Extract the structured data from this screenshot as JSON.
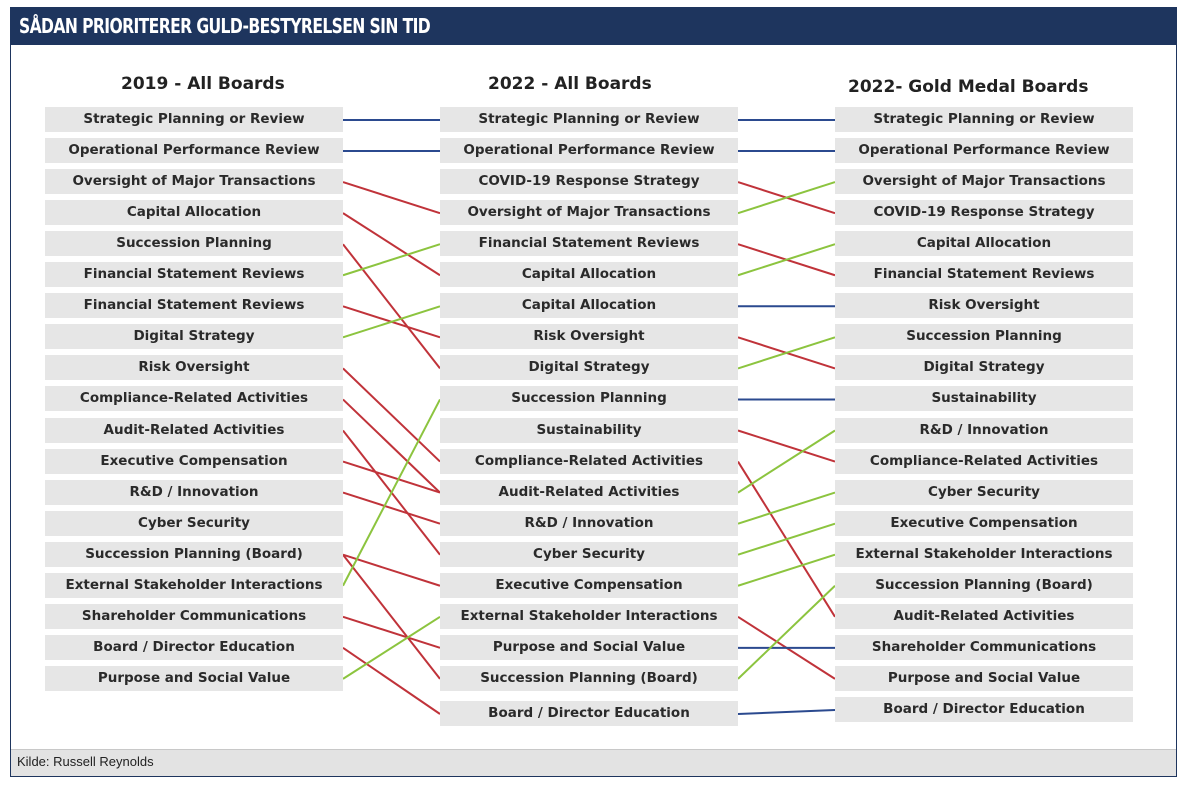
{
  "header": {
    "title": "SÅDAN PRIORITERER GULD-BESTYRELSEN SIN TID"
  },
  "columns": [
    {
      "title": "2019 - All Boards",
      "items": [
        "Strategic Planning or Review",
        "Operational Performance Review",
        "Oversight of Major Transactions",
        "Capital Allocation",
        "Succession Planning",
        "Financial Statement Reviews",
        "Financial Statement Reviews",
        "Digital Strategy",
        "Risk Oversight",
        "Compliance-Related Activities",
        "Audit-Related Activities",
        "Executive Compensation",
        "R&D / Innovation",
        "Cyber Security",
        "Succession Planning (Board)",
        "External Stakeholder Interactions",
        "Shareholder Communications",
        "Board / Director Education",
        "Purpose and Social Value"
      ]
    },
    {
      "title": "2022 - All Boards",
      "items": [
        "Strategic Planning or Review",
        "Operational Performance Review",
        "COVID-19 Response Strategy",
        "Oversight of Major Transactions",
        "Financial Statement Reviews",
        "Capital Allocation",
        "Capital Allocation",
        "Risk Oversight",
        "Digital Strategy",
        "Succession Planning",
        "Sustainability",
        "Compliance-Related Activities",
        "Audit-Related Activities",
        "R&D / Innovation",
        "Cyber Security",
        "Executive Compensation",
        "External Stakeholder Interactions",
        "Purpose and Social Value",
        "Succession Planning (Board)",
        "Board / Director Education"
      ]
    },
    {
      "title": "2022- Gold Medal Boards",
      "items": [
        "Strategic Planning or Review",
        "Operational Performance Review",
        "Oversight of Major Transactions",
        "COVID-19 Response Strategy",
        "Capital Allocation",
        "Financial Statement Reviews",
        "Risk Oversight",
        "Succession Planning",
        "Digital Strategy",
        "Sustainability",
        "R&D / Innovation",
        "Compliance-Related Activities",
        "Cyber Security",
        "Executive Compensation",
        "External Stakeholder Interactions",
        "Succession Planning (Board)",
        "Audit-Related Activities",
        "Shareholder Communications",
        "Purpose and Social Value",
        "Board / Director Education"
      ]
    }
  ],
  "links": {
    "colors": {
      "same": "#2b4a8f",
      "down": "#c0333a",
      "up": "#8cc43f"
    },
    "left_to_middle": [
      {
        "from": 0,
        "to": 0,
        "dir": "same"
      },
      {
        "from": 1,
        "to": 1,
        "dir": "same"
      },
      {
        "from": 2,
        "to": 3,
        "dir": "down"
      },
      {
        "from": 3,
        "to": 5,
        "dir": "down"
      },
      {
        "from": 4,
        "to": 8,
        "dir": "down"
      },
      {
        "from": 5,
        "to": 4,
        "dir": "up"
      },
      {
        "from": 6,
        "to": 7,
        "dir": "down"
      },
      {
        "from": 7,
        "to": 6,
        "dir": "up"
      },
      {
        "from": 8,
        "to": 11,
        "dir": "down"
      },
      {
        "from": 9,
        "to": 12,
        "dir": "down"
      },
      {
        "from": 10,
        "to": 14,
        "dir": "down"
      },
      {
        "from": 11,
        "to": 12,
        "dir": "down"
      },
      {
        "from": 12,
        "to": 13,
        "dir": "down"
      },
      {
        "from": 14,
        "to": 18,
        "dir": "down"
      },
      {
        "from": 14,
        "to": 15,
        "dir": "down"
      },
      {
        "from": 15,
        "to": 9,
        "dir": "up"
      },
      {
        "from": 16,
        "to": 17,
        "dir": "down"
      },
      {
        "from": 17,
        "to": 19,
        "dir": "down"
      },
      {
        "from": 18,
        "to": 16,
        "dir": "up"
      }
    ],
    "middle_to_right": [
      {
        "from": 0,
        "to": 0,
        "dir": "same"
      },
      {
        "from": 1,
        "to": 1,
        "dir": "same"
      },
      {
        "from": 2,
        "to": 3,
        "dir": "down"
      },
      {
        "from": 3,
        "to": 2,
        "dir": "up"
      },
      {
        "from": 4,
        "to": 5,
        "dir": "down"
      },
      {
        "from": 5,
        "to": 4,
        "dir": "up"
      },
      {
        "from": 6,
        "to": 6,
        "dir": "same"
      },
      {
        "from": 7,
        "to": 8,
        "dir": "down"
      },
      {
        "from": 8,
        "to": 7,
        "dir": "up"
      },
      {
        "from": 9,
        "to": 9,
        "dir": "same"
      },
      {
        "from": 10,
        "to": 11,
        "dir": "down"
      },
      {
        "from": 11,
        "to": 16,
        "dir": "down"
      },
      {
        "from": 12,
        "to": 10,
        "dir": "up"
      },
      {
        "from": 13,
        "to": 12,
        "dir": "up"
      },
      {
        "from": 14,
        "to": 13,
        "dir": "up"
      },
      {
        "from": 15,
        "to": 14,
        "dir": "up"
      },
      {
        "from": 16,
        "to": 18,
        "dir": "down"
      },
      {
        "from": 17,
        "to": 17,
        "dir": "same"
      },
      {
        "from": 18,
        "to": 15,
        "dir": "up"
      },
      {
        "from": 19,
        "to": 19,
        "dir": "same"
      }
    ]
  },
  "footer": {
    "source": "Kilde: Russell Reynolds"
  }
}
